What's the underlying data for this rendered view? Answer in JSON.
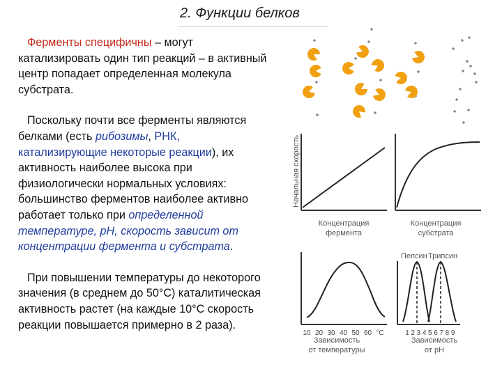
{
  "title": "2. Функции белков",
  "p1": {
    "red": "Ферменты специфичны",
    "rest": " – могут катализировать один тип реакций – в активный центр попадает определенная молекула субстрата."
  },
  "p2": {
    "a": "Поскольку почти все ферменты являются белками (есть ",
    "ribozymes": "рибозимы",
    "b": ", ",
    "rnk": "РНК, катализирующие некоторые реакции",
    "c": "), их активность наиболее высока при физиологически нормальных условиях: большинство ферментов наиболее активно работает только при ",
    "blue": "определенной температуре, pH, скорость зависит от концентрации фермента и субстрата",
    "d": "."
  },
  "p3": "При повышении температуры до некоторого значения (в среднем до 50°С) каталитическая активность растет (на каждые 10°С скорость реакции повышается примерно в 2 раза).",
  "figure": {
    "ylabel": "Начальная скорость",
    "label_enzyme_conc": [
      "Концентрация",
      "фермента"
    ],
    "label_substrate_conc": [
      "Концентрация",
      "субстрата"
    ],
    "label_temp": [
      "Зависимость",
      "от температуры"
    ],
    "label_ph": [
      "Зависимость",
      "от pH"
    ],
    "temp_ticks": [
      "10",
      "20",
      "30",
      "40",
      "50",
      "60",
      "°C"
    ],
    "ph_ticks": [
      "1",
      "2",
      "3",
      "4",
      "5",
      "6",
      "7",
      "8",
      "9"
    ],
    "pepsin": "Пепсин",
    "trypsin": "Трипсин"
  },
  "colors": {
    "enzyme": "#f0a010",
    "text_red": "#c42a1c",
    "text_blue": "#1f3c9e"
  }
}
